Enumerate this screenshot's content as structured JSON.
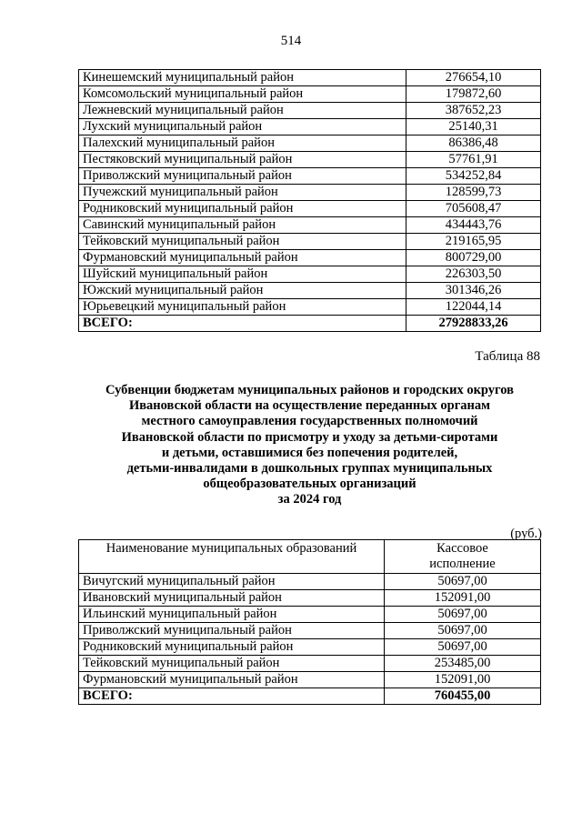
{
  "page_number": "514",
  "table1": {
    "rows": [
      {
        "name": "Кинешемский муниципальный район",
        "value": "276654,10"
      },
      {
        "name": "Комсомольский муниципальный район",
        "value": "179872,60"
      },
      {
        "name": "Лежневский муниципальный район",
        "value": "387652,23"
      },
      {
        "name": "Лухский муниципальный район",
        "value": "25140,31"
      },
      {
        "name": "Палехский муниципальный район",
        "value": "86386,48"
      },
      {
        "name": "Пестяковский муниципальный район",
        "value": "57761,91"
      },
      {
        "name": "Приволжский муниципальный район",
        "value": "534252,84"
      },
      {
        "name": "Пучежский муниципальный район",
        "value": "128599,73"
      },
      {
        "name": "Родниковский муниципальный район",
        "value": "705608,47"
      },
      {
        "name": "Савинский муниципальный район",
        "value": "434443,76"
      },
      {
        "name": "Тейковский муниципальный район",
        "value": "219165,95"
      },
      {
        "name": "Фурмановский муниципальный район",
        "value": "800729,00"
      },
      {
        "name": "Шуйский муниципальный район",
        "value": "226303,50"
      },
      {
        "name": "Южский муниципальный район",
        "value": "301346,26"
      },
      {
        "name": "Юрьевецкий муниципальный район",
        "value": "122044,14"
      }
    ],
    "total": {
      "name": "ВСЕГО:",
      "value": "27928833,26"
    }
  },
  "table2": {
    "number_label": "Таблица 88",
    "title_lines": [
      "Субвенции бюджетам муниципальных районов и городских округов",
      "Ивановской области на осуществление переданных органам",
      "местного самоуправления государственных полномочий",
      "Ивановской области по присмотру и уходу за детьми-сиротами",
      "и детьми, оставшимися без попечения родителей,",
      "детьми-инвалидами в дошкольных группах муниципальных",
      "общеобразовательных организаций",
      "за 2024 год"
    ],
    "unit": "(руб.)",
    "headers": [
      "Наименование муниципальных образований",
      "Кассовое исполнение"
    ],
    "rows": [
      {
        "name": "Вичугский муниципальный район",
        "value": "50697,00"
      },
      {
        "name": "Ивановский муниципальный район",
        "value": "152091,00"
      },
      {
        "name": "Ильинский муниципальный район",
        "value": "50697,00"
      },
      {
        "name": "Приволжский муниципальный район",
        "value": "50697,00"
      },
      {
        "name": "Родниковский муниципальный район",
        "value": "50697,00"
      },
      {
        "name": "Тейковский муниципальный район",
        "value": "253485,00"
      },
      {
        "name": "Фурмановский муниципальный район",
        "value": "152091,00"
      }
    ],
    "total": {
      "name": "ВСЕГО:",
      "value": "760455,00"
    }
  }
}
